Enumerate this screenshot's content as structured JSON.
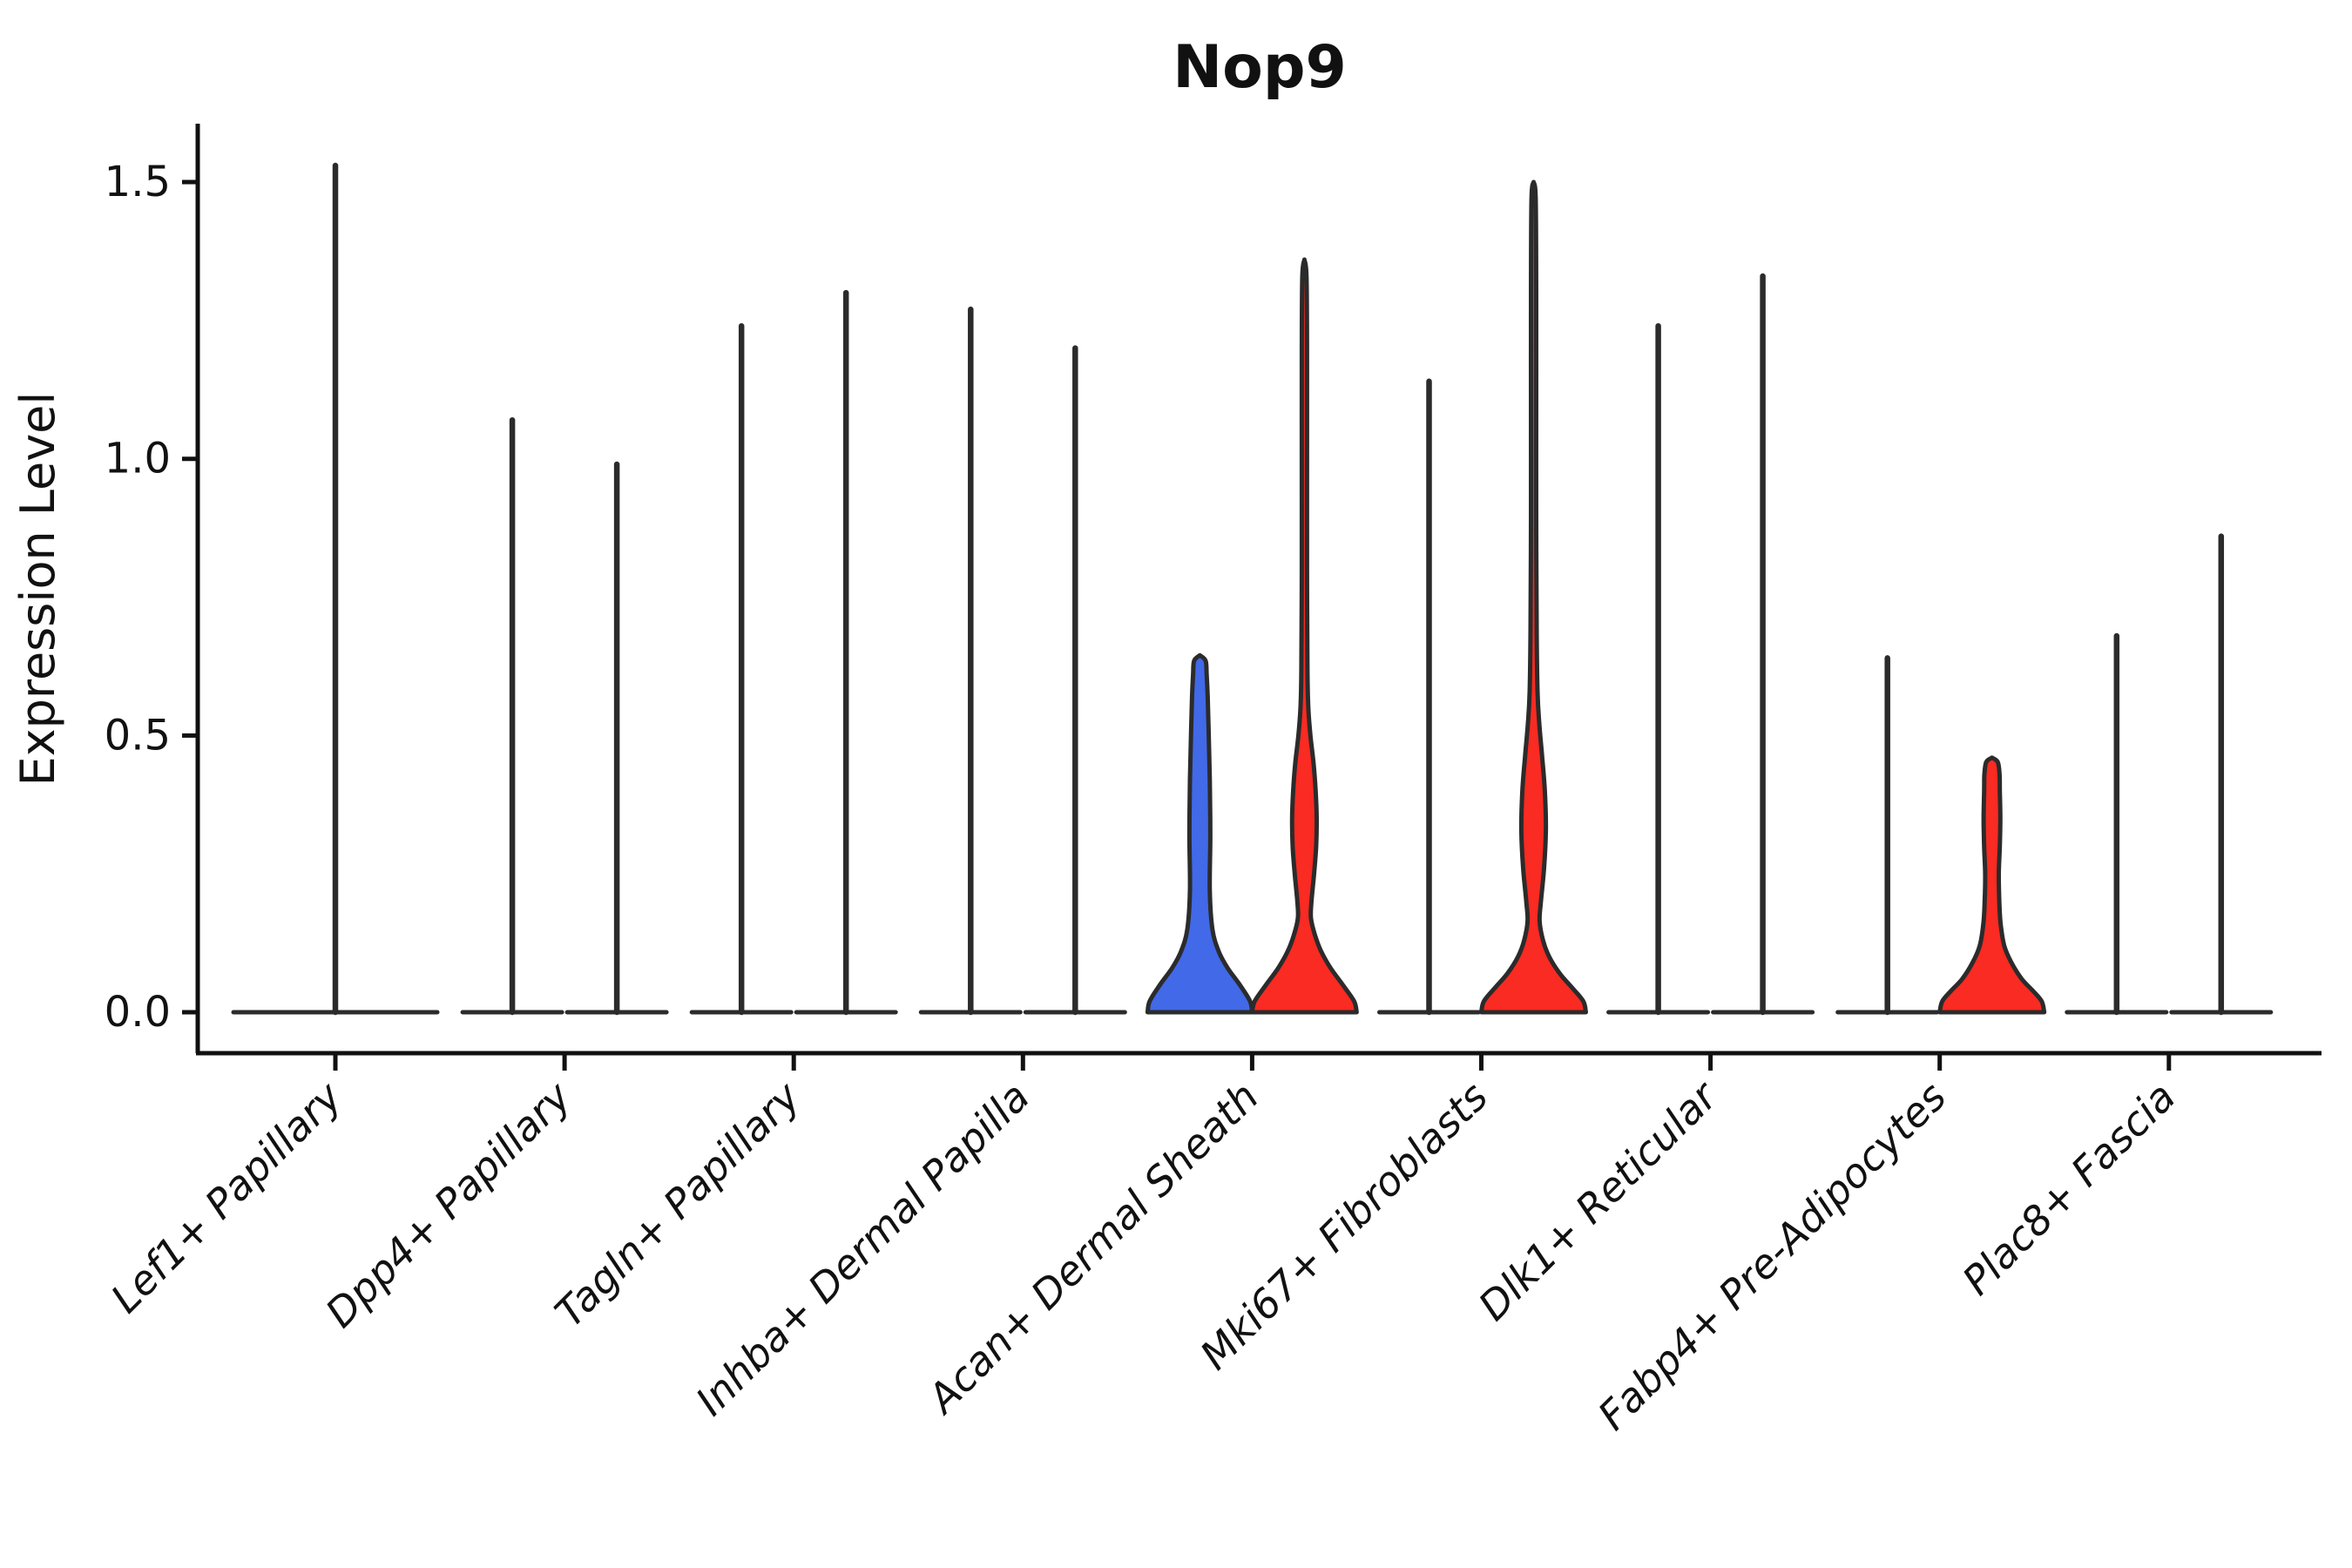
{
  "title": "Nop9",
  "axes": {
    "ylabel": "Expression Level",
    "ytick_labels": [
      "0.0",
      "0.5",
      "1.0",
      "1.5"
    ]
  },
  "colors": {
    "blue": "#4169E8",
    "red": "#F92B22",
    "violin_outline": "#2B2B2B",
    "axis": "#111111",
    "background": "#FFFFFF"
  },
  "chart_data": {
    "type": "violin",
    "title": "Nop9",
    "xlabel": "",
    "ylabel": "Expression Level",
    "ylim": [
      0,
      1.6
    ],
    "yticks": [
      0,
      0.5,
      1.0,
      1.5
    ],
    "grid": false,
    "legend": "none",
    "split_violins_per_category": 2,
    "categories": [
      "Lef1+ Papillary",
      "Dpp4+ Papillary",
      "Tagln+ Papillary",
      "Inhba+ Dermal Papilla",
      "Acan+ Dermal Sheath",
      "Mki67+ Fibroblasts",
      "Dlk1+ Reticular",
      "Fabp4+ Pre-Adipocytes",
      "Plac8+ Fascia"
    ],
    "violins": [
      {
        "category": "Lef1+ Papillary",
        "items": [
          {
            "kind": "spike",
            "position": "center",
            "width": "full",
            "max": 1.53
          }
        ]
      },
      {
        "category": "Dpp4+ Papillary",
        "items": [
          {
            "kind": "spike",
            "position": "left",
            "max": 1.07
          },
          {
            "kind": "spike",
            "position": "right",
            "max": 0.99
          }
        ]
      },
      {
        "category": "Tagln+ Papillary",
        "items": [
          {
            "kind": "spike",
            "position": "left",
            "max": 1.24
          },
          {
            "kind": "spike",
            "position": "right",
            "max": 1.3
          }
        ]
      },
      {
        "category": "Inhba+ Dermal Papilla",
        "items": [
          {
            "kind": "spike",
            "position": "left",
            "max": 1.27
          },
          {
            "kind": "spike",
            "position": "right",
            "max": 1.2
          }
        ]
      },
      {
        "category": "Acan+ Dermal Sheath",
        "items": [
          {
            "kind": "violin",
            "position": "left",
            "color": "blue",
            "max": 0.645,
            "profile": [
              [
                0,
                1.0
              ],
              [
                0.02,
                0.96
              ],
              [
                0.05,
                0.76
              ],
              [
                0.08,
                0.53
              ],
              [
                0.11,
                0.36
              ],
              [
                0.15,
                0.24
              ],
              [
                0.22,
                0.19
              ],
              [
                0.32,
                0.2
              ],
              [
                0.42,
                0.19
              ],
              [
                0.5,
                0.17
              ],
              [
                0.57,
                0.15
              ],
              [
                0.61,
                0.13
              ],
              [
                0.635,
                0.11
              ],
              [
                0.645,
                0
              ]
            ]
          },
          {
            "kind": "violin",
            "position": "right",
            "color": "red",
            "max": 1.36,
            "profile": [
              [
                0,
                1.0
              ],
              [
                0.02,
                0.95
              ],
              [
                0.05,
                0.73
              ],
              [
                0.08,
                0.5
              ],
              [
                0.11,
                0.32
              ],
              [
                0.14,
                0.2
              ],
              [
                0.17,
                0.125
              ],
              [
                0.2,
                0.135
              ],
              [
                0.25,
                0.185
              ],
              [
                0.3,
                0.225
              ],
              [
                0.35,
                0.235
              ],
              [
                0.4,
                0.215
              ],
              [
                0.45,
                0.175
              ],
              [
                0.5,
                0.115
              ],
              [
                0.55,
                0.075
              ],
              [
                0.62,
                0.058
              ],
              [
                0.8,
                0.05
              ],
              [
                1.0,
                0.05
              ],
              [
                1.2,
                0.05
              ],
              [
                1.33,
                0.04
              ],
              [
                1.36,
                0
              ]
            ]
          }
        ]
      },
      {
        "category": "Mki67+ Fibroblasts",
        "items": [
          {
            "kind": "spike",
            "position": "left",
            "max": 1.14
          },
          {
            "kind": "violin",
            "position": "right",
            "color": "red",
            "max": 1.5,
            "profile": [
              [
                0,
                1.0
              ],
              [
                0.02,
                0.95
              ],
              [
                0.045,
                0.73
              ],
              [
                0.07,
                0.5
              ],
              [
                0.1,
                0.3
              ],
              [
                0.13,
                0.18
              ],
              [
                0.165,
                0.115
              ],
              [
                0.2,
                0.14
              ],
              [
                0.26,
                0.2
              ],
              [
                0.33,
                0.235
              ],
              [
                0.4,
                0.215
              ],
              [
                0.46,
                0.165
              ],
              [
                0.52,
                0.11
              ],
              [
                0.58,
                0.075
              ],
              [
                0.7,
                0.058
              ],
              [
                0.9,
                0.05
              ],
              [
                1.1,
                0.05
              ],
              [
                1.3,
                0.05
              ],
              [
                1.47,
                0.04
              ],
              [
                1.5,
                0
              ]
            ]
          }
        ]
      },
      {
        "category": "Dlk1+ Reticular",
        "items": [
          {
            "kind": "spike",
            "position": "left",
            "max": 1.24
          },
          {
            "kind": "spike",
            "position": "right",
            "max": 1.33
          }
        ]
      },
      {
        "category": "Fabp4+ Pre-Adipocytes",
        "items": [
          {
            "kind": "spike",
            "position": "left",
            "max": 0.64
          },
          {
            "kind": "violin",
            "position": "right",
            "color": "red",
            "max": 0.46,
            "profile": [
              [
                0,
                1.0
              ],
              [
                0.02,
                0.95
              ],
              [
                0.04,
                0.77
              ],
              [
                0.06,
                0.57
              ],
              [
                0.09,
                0.37
              ],
              [
                0.12,
                0.235
              ],
              [
                0.16,
                0.165
              ],
              [
                0.2,
                0.14
              ],
              [
                0.25,
                0.13
              ],
              [
                0.3,
                0.15
              ],
              [
                0.35,
                0.16
              ],
              [
                0.4,
                0.15
              ],
              [
                0.43,
                0.145
              ],
              [
                0.452,
                0.11
              ],
              [
                0.46,
                0
              ]
            ]
          }
        ]
      },
      {
        "category": "Plac8+ Fascia",
        "items": [
          {
            "kind": "spike",
            "position": "left",
            "max": 0.68
          },
          {
            "kind": "spike",
            "position": "right",
            "max": 0.86
          }
        ]
      }
    ]
  }
}
